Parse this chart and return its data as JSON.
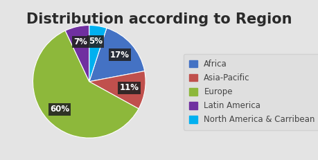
{
  "title": "Distribution according to Region",
  "slices": [
    17,
    11,
    60,
    7,
    5
  ],
  "labels": [
    "Africa",
    "Asia-Pacific",
    "Europe",
    "Latin America",
    "North America & Carribean"
  ],
  "colors": [
    "#4472C4",
    "#C0504D",
    "#8DB83B",
    "#7030A0",
    "#00B0F0"
  ],
  "startangle": 72,
  "background_color": "#E4E4E4",
  "title_fontsize": 15,
  "legend_fontsize": 8.5,
  "pct_fontsize": 8.5
}
